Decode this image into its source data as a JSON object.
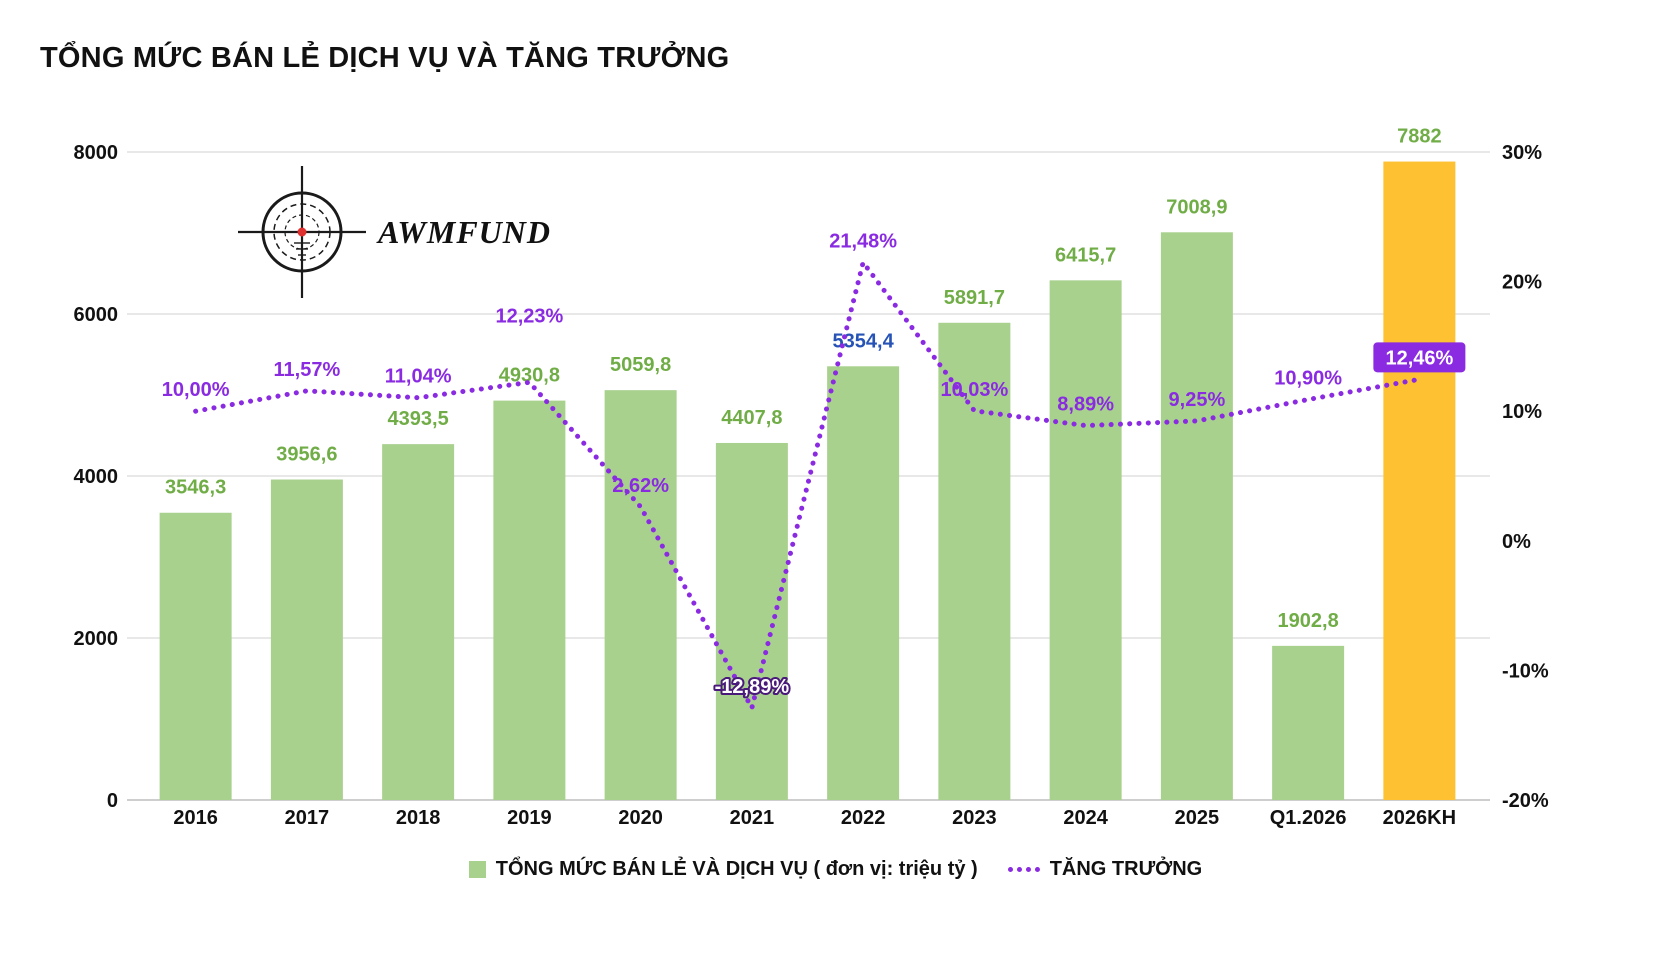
{
  "title": "TỔNG MỨC BÁN LẺ DỊCH VỤ VÀ TĂNG TRƯỞNG",
  "logo": {
    "text": "AWMFUND"
  },
  "legend": {
    "bars_label": "TỔNG MỨC BÁN LẺ VÀ DỊCH VỤ ( đơn vị: triệu tỷ )",
    "line_label": "TĂNG TRƯỞNG"
  },
  "colors": {
    "bar": "#a9d18e",
    "bar_highlight": "#fdc132",
    "bar_label": "#70ad47",
    "bar_label_special": "#2653b5",
    "line": "#8a2be2",
    "grid": "#d9d9d9",
    "baseline": "#bdbdbd",
    "axis_text": "#111111"
  },
  "chart_data": {
    "type": "bar+line",
    "title": "TỔNG MỨC BÁN LẺ DỊCH VỤ VÀ TĂNG TRƯỞNG",
    "categories": [
      "2016",
      "2017",
      "2018",
      "2019",
      "2020",
      "2021",
      "2022",
      "2023",
      "2024",
      "2025",
      "Q1.2026",
      "2026KH"
    ],
    "series": [
      {
        "name": "TỔNG MỨC BÁN LẺ VÀ DỊCH VỤ ( đơn vị: triệu tỷ )",
        "type": "bar",
        "values": [
          3546.3,
          3956.6,
          4393.5,
          4930.8,
          5059.8,
          4407.8,
          5354.4,
          5891.7,
          6415.7,
          7008.9,
          1902.8,
          7882
        ],
        "labels": [
          "3546,3",
          "3956,6",
          "4393,5",
          "4930,8",
          "5059,8",
          "4407,8",
          "5354,4",
          "5891,7",
          "6415,7",
          "7008,9",
          "1902,8",
          "7882"
        ]
      },
      {
        "name": "TĂNG TRƯỞNG",
        "type": "line",
        "values": [
          10.0,
          11.57,
          11.04,
          12.23,
          2.62,
          -12.89,
          21.48,
          10.03,
          8.89,
          9.25,
          10.9,
          12.46
        ],
        "labels": [
          "10,00%",
          "11,57%",
          "11,04%",
          "12,23%",
          "2,62%",
          "-12,89%",
          "21,48%",
          "10,03%",
          "8,89%",
          "9,25%",
          "10,90%",
          "12,46%"
        ]
      }
    ],
    "highlight_index": 11,
    "blue_label_index": 6,
    "line_label_overrides": {
      "3": {
        "dy": -60
      },
      "5": {
        "style": "outline"
      },
      "11": {
        "style": "pill"
      }
    },
    "left_axis": {
      "min": 0,
      "max": 8000,
      "ticks": [
        {
          "value": 0,
          "label": "0"
        },
        {
          "value": 2000,
          "label": "2000"
        },
        {
          "value": 4000,
          "label": "4000"
        },
        {
          "value": 6000,
          "label": "6000"
        },
        {
          "value": 8000,
          "label": "8000"
        }
      ]
    },
    "right_axis": {
      "min": -20,
      "max": 30,
      "ticks": [
        {
          "value": 30,
          "label": "30%"
        },
        {
          "value": 20,
          "label": "20%"
        },
        {
          "value": 10,
          "label": "10%"
        },
        {
          "value": 0,
          "label": "0%"
        },
        {
          "value": -10,
          "label": "-10%"
        },
        {
          "value": -20,
          "label": "-20%"
        }
      ]
    },
    "grid": "horizontal",
    "legend_position": "bottom"
  }
}
